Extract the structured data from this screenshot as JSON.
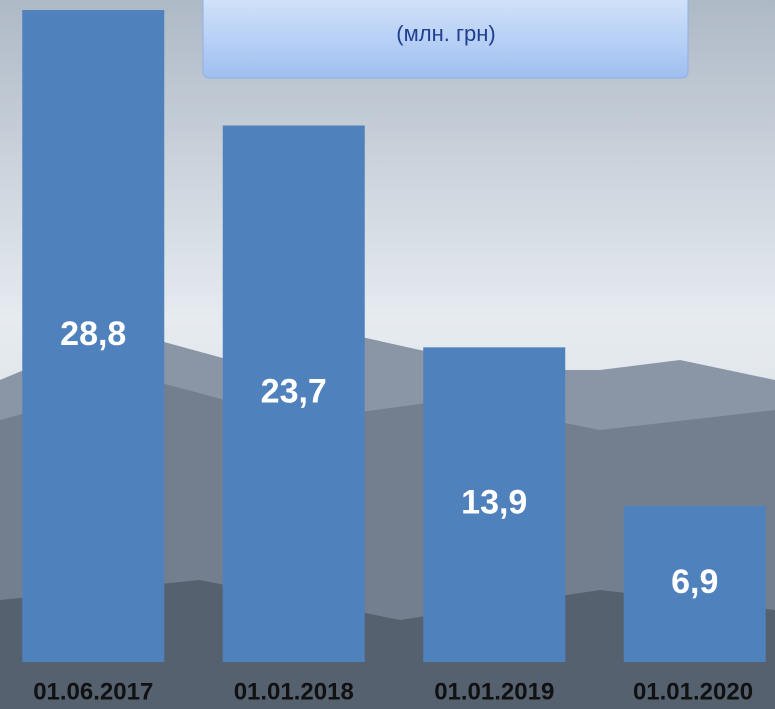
{
  "chart_data": {
    "type": "bar",
    "subtitle": "(млн. грн)",
    "categories": [
      "01.06.2017",
      "01.01.2018",
      "01.01.2019",
      "01.01.2020"
    ],
    "values": [
      28.8,
      23.7,
      13.9,
      6.9
    ],
    "value_labels": [
      "28,8",
      "23,7",
      "13,9",
      "6,9"
    ],
    "color": "#4f81bd",
    "ylim": [
      0,
      29.2
    ]
  }
}
